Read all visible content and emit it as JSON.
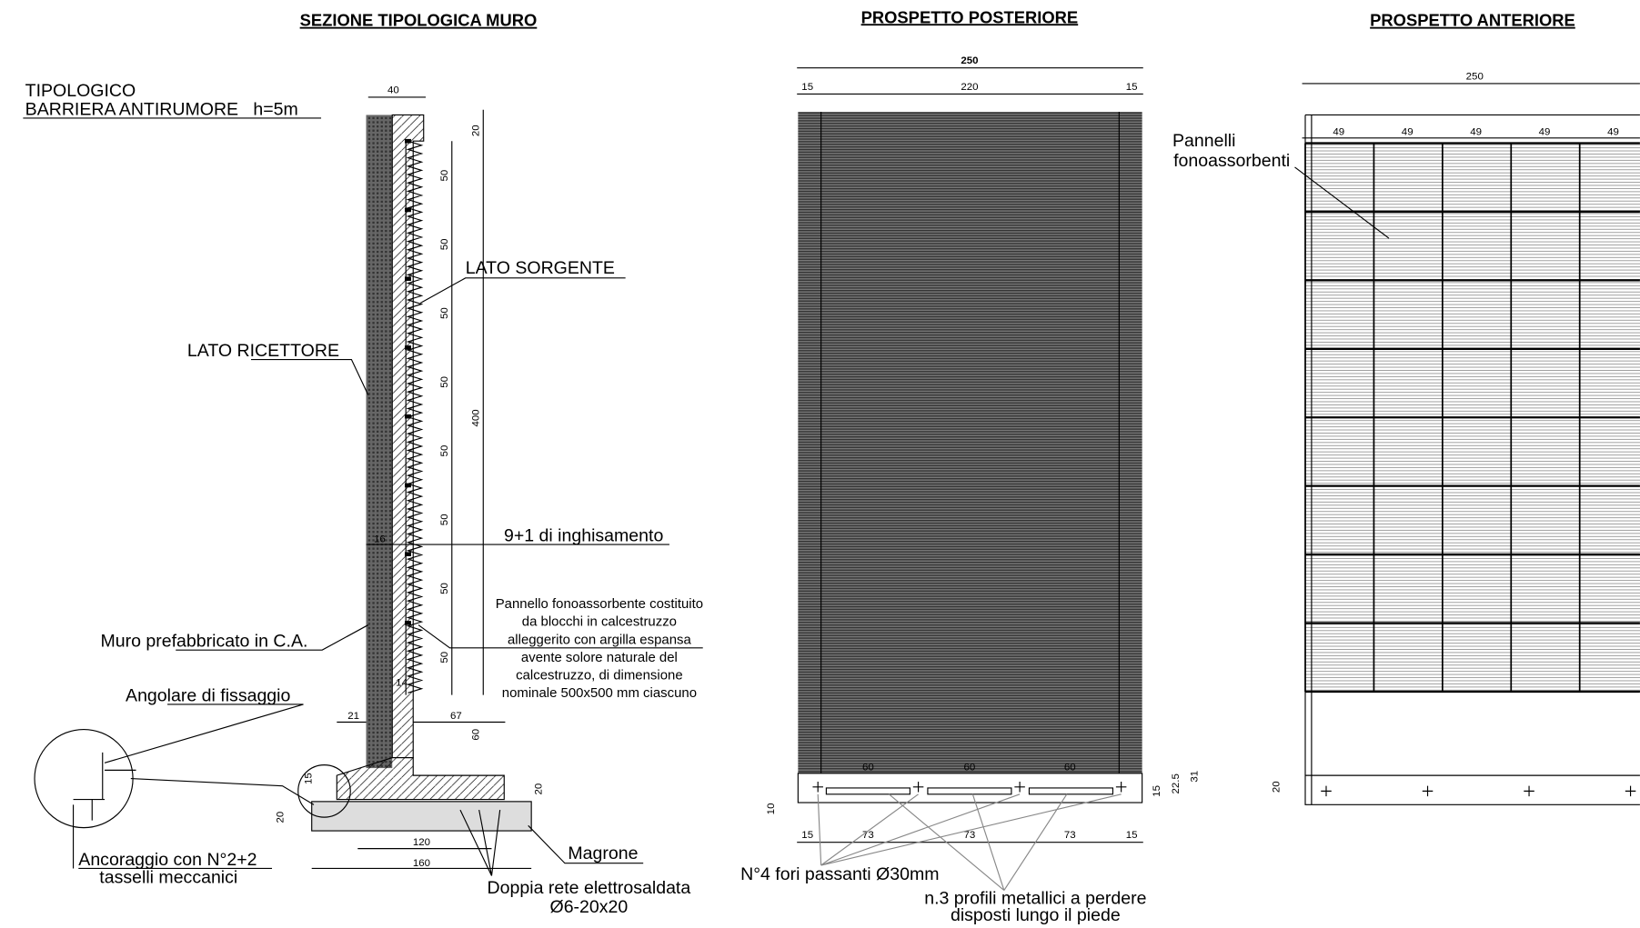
{
  "section": {
    "title": "SEZIONE TIPOLOGICA MURO",
    "typology": [
      "TIPOLOGICO",
      "BARRIERA ANTIRUMORE   h=5m"
    ],
    "source_side": "LATO SORGENTE",
    "receiver_side": "LATO RICETTORE",
    "embedment": "9+1 di inghisamento",
    "note": [
      "Pannello fonoassorbente costituito",
      "da blocchi in calcestruzzo",
      "alleggerito con argilla espansa",
      "avente solore naturale del",
      "calcestruzzo, di dimensione",
      "nominale 500x500 mm ciascuno"
    ],
    "wall": "Muro prefabbricato in C.A.",
    "bracket": "Angolare di fissaggio",
    "anchor": [
      "Ancoraggio con N°2+2",
      "tasselli meccanici"
    ],
    "lean_concrete": "Magrone",
    "mesh": [
      "Doppia rete elettrosaldata",
      "Ø6-20x20"
    ],
    "dims": {
      "top_width": "40",
      "top": "20",
      "modules": [
        "50",
        "50",
        "50",
        "50",
        "50",
        "50",
        "50",
        "50"
      ],
      "height": "400",
      "d16": "16",
      "d14": "14",
      "d21": "21",
      "d67": "67",
      "d60": "60",
      "d20a": "20",
      "d15": "15",
      "d20b": "20",
      "d120": "120",
      "d160": "160"
    }
  },
  "rear": {
    "title": "PROSPETTO POSTERIORE",
    "total": "250",
    "top": [
      "15",
      "220",
      "15"
    ],
    "slots": [
      "60",
      "60",
      "60"
    ],
    "d10": "10",
    "right": [
      "15",
      "22.5",
      "31"
    ],
    "bottom": [
      "15",
      "73",
      "73",
      "73",
      "15"
    ],
    "holes": "N°4 fori passanti Ø30mm",
    "profiles": [
      "n.3 profili metallici a perdere",
      "disposti lungo il piede"
    ]
  },
  "front": {
    "title": "PROSPETTO ANTERIORE",
    "total": "250",
    "panels": [
      "49",
      "49",
      "49",
      "49",
      "49"
    ],
    "label": [
      "Pannelli",
      "fonoassorbenti"
    ],
    "d20": "20"
  }
}
